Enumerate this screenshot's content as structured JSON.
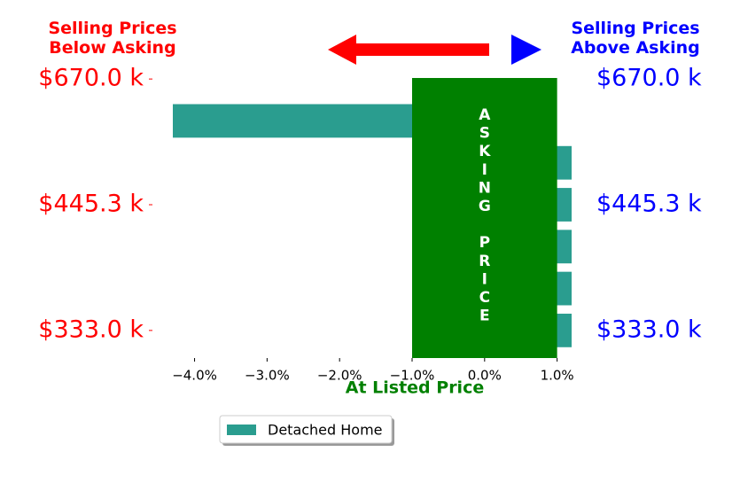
{
  "chart_data": {
    "type": "barh",
    "categories": [
      "$670.0 k",
      null,
      null,
      "$445.3 k",
      null,
      null,
      "$333.0 k"
    ],
    "series": [
      {
        "name": "Detached Home",
        "color": "#2a9d8f",
        "values": [
          0,
          -4.3,
          1.2,
          1.2,
          1.2,
          1.2,
          1.2
        ]
      }
    ],
    "xlim": [
      -4.3,
      1.2
    ],
    "xticks": [
      {
        "value": -4,
        "label": "−4.0%"
      },
      {
        "value": -3,
        "label": "−3.0%"
      },
      {
        "value": -2,
        "label": "−2.0%"
      },
      {
        "value": -1,
        "label": "−1.0%"
      },
      {
        "value": 0,
        "label": "0.0%"
      },
      {
        "value": 1,
        "label": "1.0%"
      }
    ],
    "highlight_span": [
      -1,
      1
    ],
    "highlight_color": "#008000",
    "highlight_text": "ASKING PRICE",
    "xlabel": "At Listed Price",
    "left_title": "Selling Prices\nBelow Asking",
    "right_title": "Selling Prices\nAbove Asking",
    "left_color": "#ff0000",
    "right_color": "#0000ff",
    "legend": "bottom center"
  }
}
